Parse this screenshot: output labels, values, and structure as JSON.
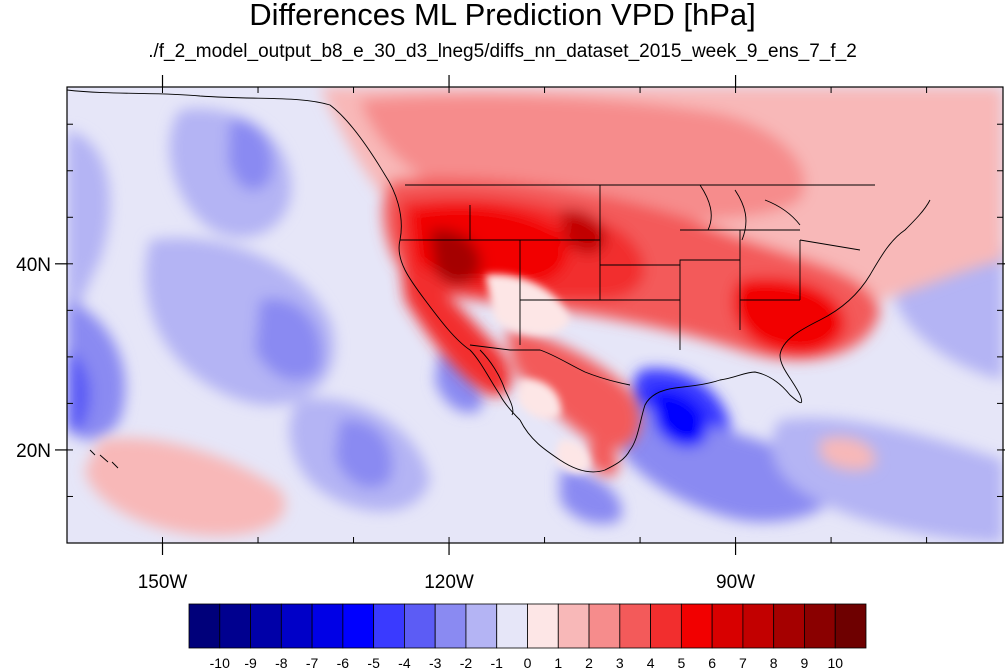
{
  "title": "Differences ML Prediction VPD [hPa]",
  "subtitle": "./f_2_model_output_b8_e_30_d3_lneg5/diffs_nn_dataset_2015_week_9_ens_7_f_2",
  "map": {
    "projection": "cylindrical",
    "lon_range": [
      -160,
      -62
    ],
    "lat_range": [
      10,
      59
    ],
    "lon_ticks": [
      {
        "value": -150,
        "label": "150W"
      },
      {
        "value": -120,
        "label": "120W"
      },
      {
        "value": -90,
        "label": "90W"
      }
    ],
    "lat_ticks": [
      {
        "value": 40,
        "label": "40N"
      },
      {
        "value": 20,
        "label": "20N"
      }
    ],
    "ocean_color": "#e6e6f8",
    "coastline_color": "#000000"
  },
  "colorbar": {
    "labels": [
      "-10",
      "-9",
      "-8",
      "-7",
      "-6",
      "-5",
      "-4",
      "-3",
      "-2",
      "-1",
      "0",
      "1",
      "2",
      "3",
      "4",
      "5",
      "6",
      "7",
      "8",
      "9",
      "10"
    ],
    "colors": [
      "#00007a",
      "#00008f",
      "#0000a8",
      "#0000c8",
      "#0000e6",
      "#0000ff",
      "#3a3aff",
      "#5c5cf5",
      "#8a8af2",
      "#b4b4f4",
      "#e6e6f8",
      "#fde6e6",
      "#f8b8b8",
      "#f68c8c",
      "#f35a5a",
      "#f22e2e",
      "#f20000",
      "#d80000",
      "#c20000",
      "#a50000",
      "#8a0000",
      "#6e0000"
    ]
  }
}
